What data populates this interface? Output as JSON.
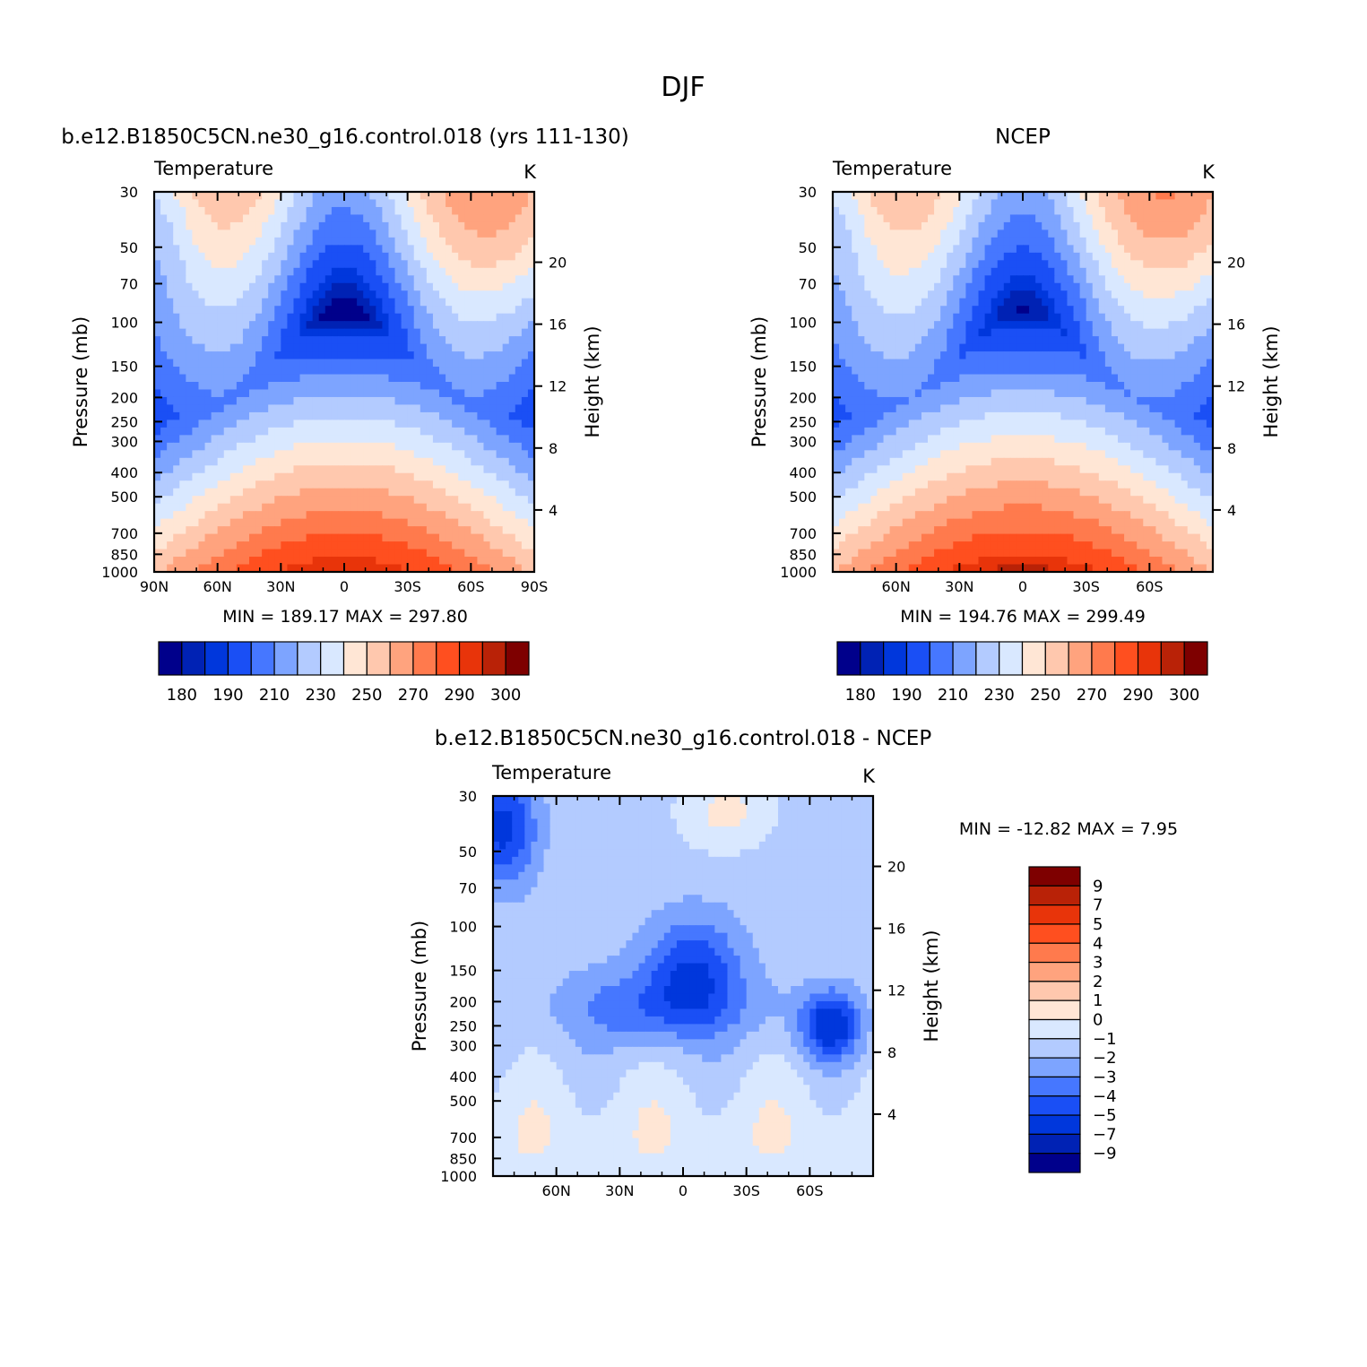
{
  "figure": {
    "title": "DJF"
  },
  "colors": {
    "temperature_levels": [
      "#00008b",
      "#0022b4",
      "#0037dc",
      "#1a4ff5",
      "#4677ff",
      "#7da4ff",
      "#b3cbff",
      "#d9e8ff",
      "#ffe6d5",
      "#ffc8ae",
      "#ffa37e",
      "#ff7a4d",
      "#ff4f1f",
      "#e8340a",
      "#b92207",
      "#7e0000"
    ],
    "difference_levels": [
      "#00008b",
      "#0022b4",
      "#0037dc",
      "#1a4ff5",
      "#4677ff",
      "#7da4ff",
      "#b3cbff",
      "#d9e8ff",
      "#ffe6d5",
      "#ffc8ae",
      "#ffa37e",
      "#ff7a4d",
      "#ff4f1f",
      "#e8340a",
      "#b92207",
      "#7e0000"
    ]
  },
  "chart_data": [
    {
      "id": "model",
      "type": "heatmap",
      "title": "b.e12.B1850C5CN.ne30_g16.control.018 (yrs 111-130)",
      "left_string": "Temperature",
      "right_string": "K",
      "ylabel": "Pressure (mb)",
      "ylabel_right": "Height (km)",
      "x_ticks": [
        "90N",
        "60N",
        "30N",
        "0",
        "30S",
        "60S",
        "90S"
      ],
      "x_tick_values": [
        90,
        60,
        30,
        0,
        -30,
        -60,
        -90
      ],
      "xlim": [
        90,
        -90
      ],
      "y_ticks": [
        "30",
        "50",
        "70",
        "100",
        "150",
        "200",
        "250",
        "300",
        "400",
        "500",
        "700",
        "850",
        "1000"
      ],
      "y_tick_values": [
        30,
        50,
        70,
        100,
        150,
        200,
        250,
        300,
        400,
        500,
        700,
        850,
        1000
      ],
      "ylim": [
        1000,
        30
      ],
      "y_scale": "log",
      "height_ticks": [
        "4",
        "8",
        "12",
        "16",
        "20"
      ],
      "height_tick_values": [
        4,
        8,
        12,
        16,
        20
      ],
      "stats": "MIN =  189.17   MAX =  297.80",
      "min": 189.17,
      "max": 297.8,
      "colorbar": {
        "orientation": "horizontal",
        "levels": [
          180,
          185,
          190,
          200,
          210,
          220,
          230,
          240,
          250,
          260,
          270,
          280,
          290,
          295,
          300
        ],
        "labels": [
          "180",
          "190",
          "210",
          "230",
          "250",
          "270",
          "290",
          "300"
        ]
      }
    },
    {
      "id": "ncep",
      "type": "heatmap",
      "title": "NCEP",
      "left_string": "Temperature",
      "right_string": "K",
      "ylabel": "Pressure (mb)",
      "ylabel_right": "Height (km)",
      "x_ticks": [
        "60N",
        "30N",
        "0",
        "30S",
        "60S"
      ],
      "x_tick_values": [
        60,
        30,
        0,
        -30,
        -60
      ],
      "xlim": [
        90,
        -90
      ],
      "y_ticks": [
        "30",
        "50",
        "70",
        "100",
        "150",
        "200",
        "250",
        "300",
        "400",
        "500",
        "700",
        "850",
        "1000"
      ],
      "y_tick_values": [
        30,
        50,
        70,
        100,
        150,
        200,
        250,
        300,
        400,
        500,
        700,
        850,
        1000
      ],
      "ylim": [
        1000,
        30
      ],
      "y_scale": "log",
      "height_ticks": [
        "4",
        "8",
        "12",
        "16",
        "20"
      ],
      "height_tick_values": [
        4,
        8,
        12,
        16,
        20
      ],
      "stats": "MIN =  194.76   MAX =  299.49",
      "min": 194.76,
      "max": 299.49,
      "colorbar": {
        "orientation": "horizontal",
        "levels": [
          180,
          185,
          190,
          200,
          210,
          220,
          230,
          240,
          250,
          260,
          270,
          280,
          290,
          295,
          300
        ],
        "labels": [
          "180",
          "190",
          "210",
          "230",
          "250",
          "270",
          "290",
          "300"
        ]
      }
    },
    {
      "id": "difference",
      "type": "heatmap",
      "title": "b.e12.B1850C5CN.ne30_g16.control.018 - NCEP",
      "left_string": "Temperature",
      "right_string": "K",
      "ylabel": "Pressure (mb)",
      "ylabel_right": "Height (km)",
      "x_ticks": [
        "60N",
        "30N",
        "0",
        "30S",
        "60S"
      ],
      "x_tick_values": [
        60,
        30,
        0,
        -30,
        -60
      ],
      "xlim": [
        90,
        -90
      ],
      "y_ticks": [
        "30",
        "50",
        "70",
        "100",
        "150",
        "200",
        "250",
        "300",
        "400",
        "500",
        "700",
        "850",
        "1000"
      ],
      "y_tick_values": [
        30,
        50,
        70,
        100,
        150,
        200,
        250,
        300,
        400,
        500,
        700,
        850,
        1000
      ],
      "ylim": [
        1000,
        30
      ],
      "y_scale": "log",
      "height_ticks": [
        "4",
        "8",
        "12",
        "16",
        "20"
      ],
      "height_tick_values": [
        4,
        8,
        12,
        16,
        20
      ],
      "stats": "MIN = -12.82   MAX =    7.95",
      "min": -12.82,
      "max": 7.95,
      "colorbar": {
        "orientation": "vertical",
        "levels": [
          -9,
          -7,
          -5,
          -4,
          -3,
          -2,
          -1,
          0,
          1,
          2,
          3,
          4,
          5,
          7,
          9
        ],
        "labels": [
          "9",
          "7",
          "5",
          "4",
          "3",
          "2",
          "1",
          "0",
          "-1",
          "-2",
          "-3",
          "-4",
          "-5",
          "-7",
          "-9"
        ]
      }
    }
  ]
}
